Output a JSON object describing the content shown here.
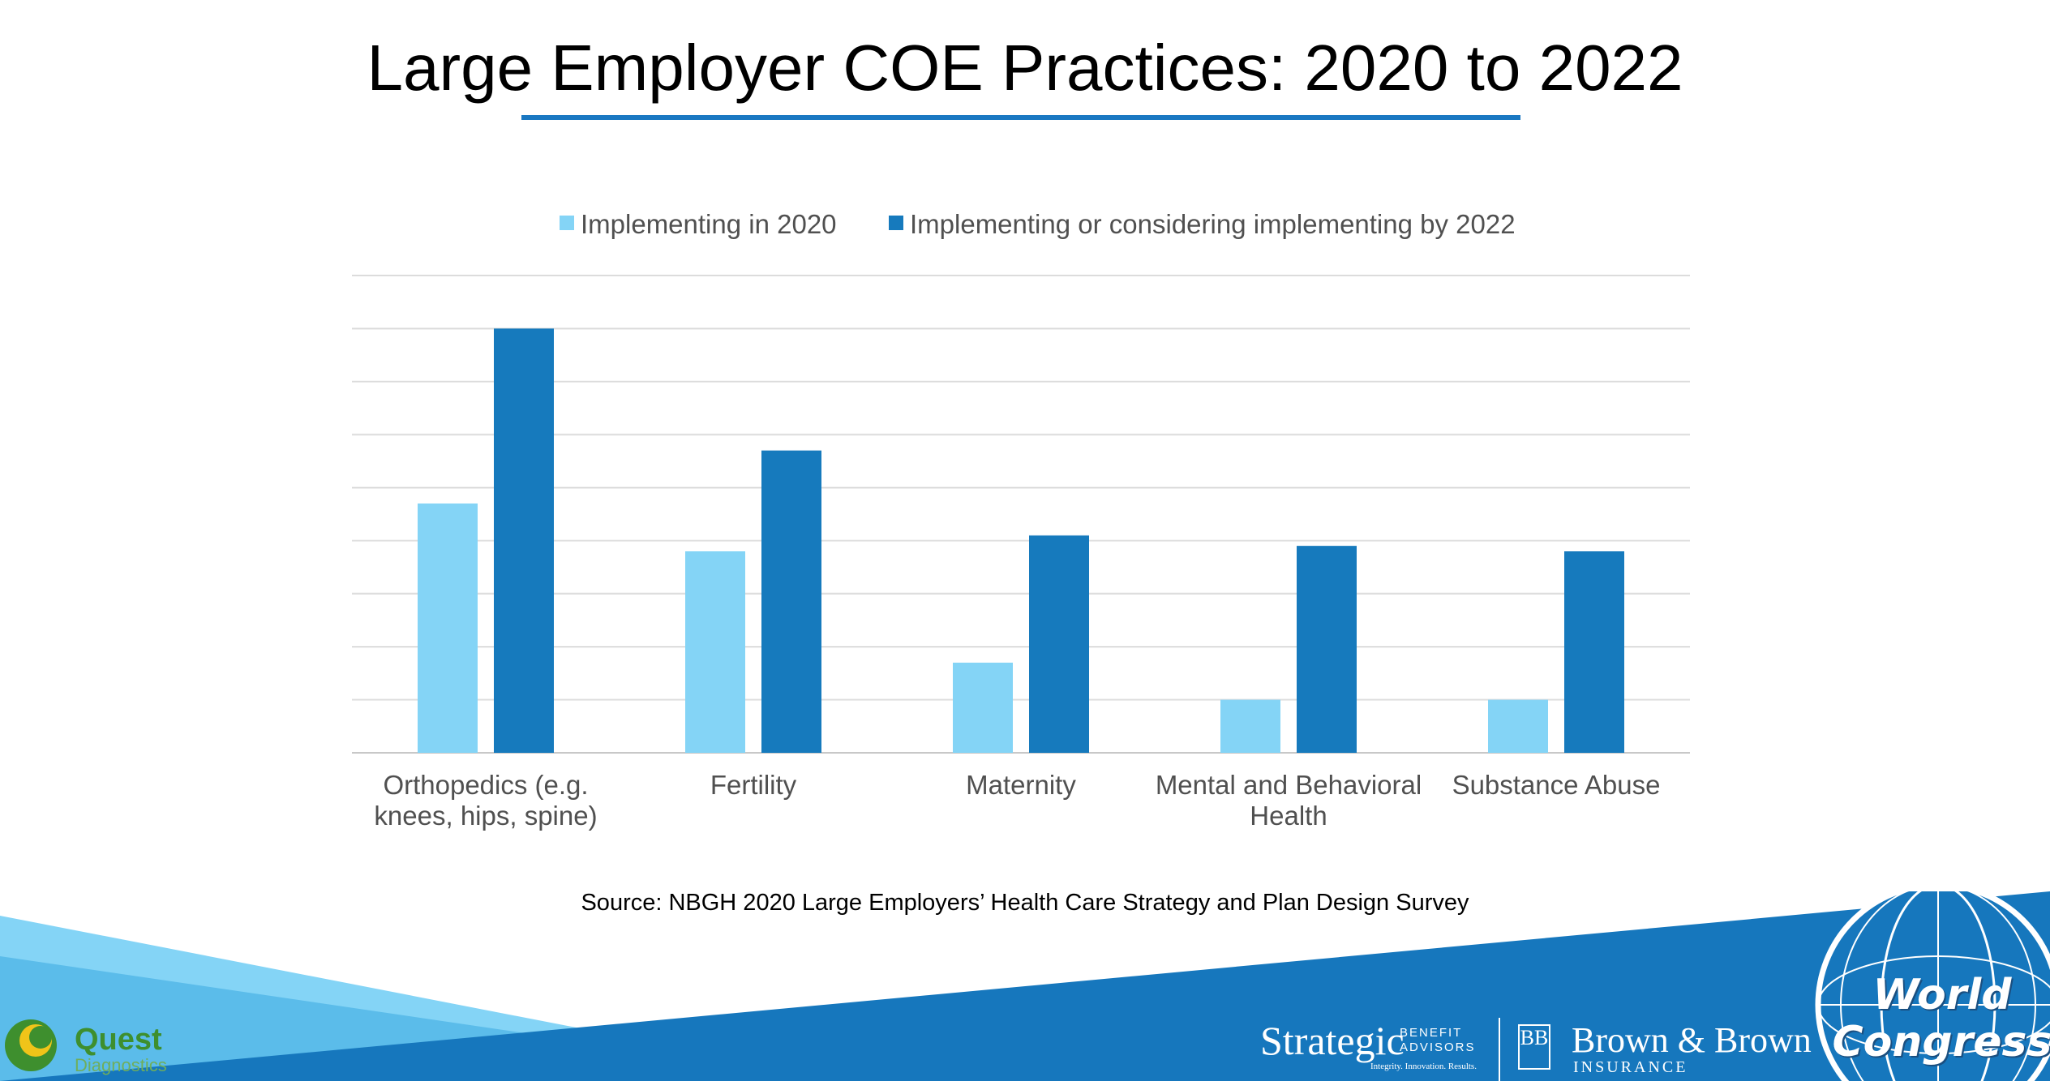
{
  "title": "Large Employer COE Practices: 2020 to 2022",
  "source": "Source: NBGH 2020 Large Employers’ Health Care Strategy and Plan Design Survey",
  "colors": {
    "series_2020": "#84d4f6",
    "series_2022": "#167abd",
    "accent": "#1a78c2"
  },
  "chart_data": {
    "type": "bar",
    "categories": [
      [
        "Orthopedics (e.g.",
        "knees, hips, spine)"
      ],
      [
        "Fertility"
      ],
      [
        "Maternity"
      ],
      [
        "Mental and Behavioral",
        "Health"
      ],
      [
        "Substance Abuse"
      ]
    ],
    "series": [
      {
        "name": "Implementing in 2020",
        "values": [
          47,
          38,
          17,
          10,
          10
        ]
      },
      {
        "name": "Implementing or considering implementing by 2022",
        "values": [
          80,
          57,
          41,
          39,
          38
        ]
      }
    ],
    "ylim": [
      0,
      90
    ],
    "grid": true,
    "legend_position": "top",
    "xlabel": "",
    "ylabel": ""
  },
  "logos": {
    "quest": {
      "name": "Quest",
      "sub": "Diagnostics"
    },
    "sba": {
      "main": "Strategic",
      "sub": "BENEFIT ADVISORS",
      "tag": "Integrity. Innovation. Results."
    },
    "bb": {
      "mark": "BB",
      "main": "Brown & Brown",
      "sub": "INSURANCE"
    },
    "wc": {
      "line1": "World",
      "line2": "Congress"
    }
  }
}
